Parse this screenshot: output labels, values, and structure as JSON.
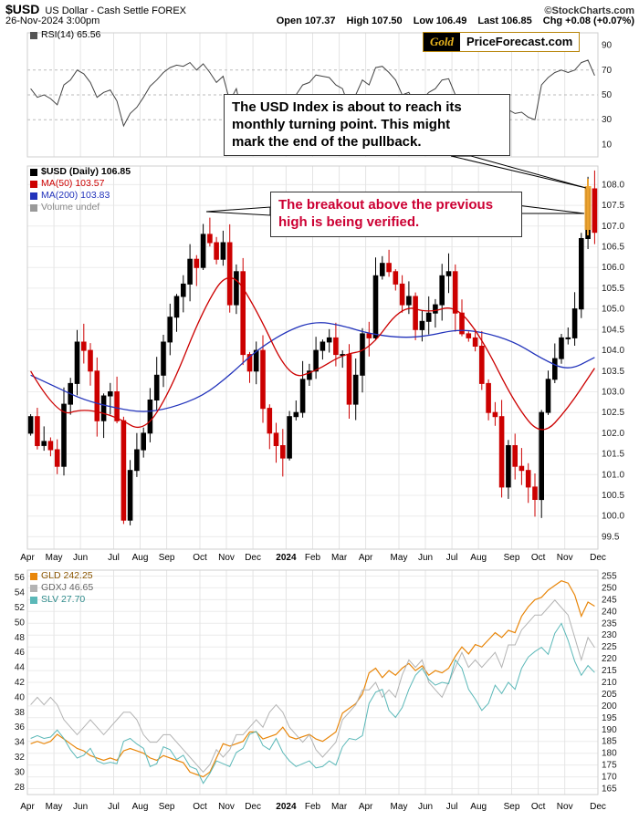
{
  "header": {
    "symbol": "$USD",
    "description": "US Dollar - Cash Settle FOREX",
    "copyright": "©StockCharts.com",
    "datetime": "26-Nov-2024 3:00pm",
    "quote": {
      "open_label": "Open",
      "open": "107.37",
      "high_label": "High",
      "high": "107.50",
      "low_label": "Low",
      "low": "106.49",
      "last_label": "Last",
      "last": "106.85",
      "chg_label": "Chg",
      "chg": "+0.08 (+0.07%)"
    }
  },
  "branding": {
    "left": "Gold",
    "right": "PriceForecast.com",
    "gold_color": "#b8860b"
  },
  "annotations": {
    "note1": "The USD Index is about to reach its\nmonthly turning point. This might\nmark the end of the pullback.",
    "note2": "The breakout above the previous\nhigh is being verified.",
    "note2_color": "#cc0033"
  },
  "rsi_panel": {
    "label": "RSI(14) 65.56"
  },
  "main_panel": {
    "legend": [
      {
        "label": "$USD (Daily) 106.85",
        "color": "#000000"
      },
      {
        "label": "MA(50) 103.57",
        "color": "#cc0000"
      },
      {
        "label": "MA(200) 103.83",
        "color": "#2233bb"
      },
      {
        "label": "Volume undef",
        "color": "#888888"
      }
    ]
  },
  "bottom_panel": {
    "legend": [
      {
        "label": "GLD 242.25",
        "color": "#e8860a"
      },
      {
        "label": "GDXJ 46.65",
        "color": "#b3b3b3"
      },
      {
        "label": "SLV 27.70",
        "color": "#5bb8b8"
      }
    ]
  },
  "x_axis": {
    "labels": [
      "Apr",
      "May",
      "Jun",
      "Jul",
      "Aug",
      "Sep",
      "Oct",
      "Nov",
      "Dec",
      "2024",
      "Feb",
      "Mar",
      "Apr",
      "May",
      "Jun",
      "Jul",
      "Aug",
      "Sep",
      "Oct",
      "Nov",
      "Dec"
    ],
    "tick_idx": [
      0,
      4,
      8,
      13,
      17,
      21,
      26,
      30,
      34,
      39,
      43,
      47,
      51,
      56,
      60,
      64,
      68,
      73,
      77,
      81,
      86
    ]
  },
  "chart_data": [
    {
      "type": "line",
      "title": "RSI(14)",
      "current": 65.56,
      "ylim": [
        0,
        100
      ],
      "y_ticks": [
        90,
        70,
        50,
        30,
        10
      ],
      "gridlines": [
        30,
        50,
        70
      ],
      "values": [
        55,
        48,
        50,
        47,
        42,
        58,
        62,
        70,
        67,
        60,
        48,
        52,
        54,
        45,
        25,
        35,
        40,
        48,
        57,
        62,
        68,
        72,
        74,
        73,
        76,
        70,
        75,
        68,
        60,
        65,
        45,
        55,
        32,
        30,
        42,
        30,
        28,
        27,
        26,
        48,
        50,
        58,
        60,
        66,
        65,
        64,
        58,
        55,
        40,
        50,
        62,
        58,
        72,
        73,
        68,
        62,
        50,
        52,
        42,
        46,
        52,
        55,
        62,
        63,
        50,
        44,
        42,
        40,
        32,
        30,
        31,
        22,
        38,
        35,
        36,
        32,
        30,
        58,
        64,
        68,
        70,
        68,
        70,
        76,
        78,
        65.56
      ]
    },
    {
      "type": "candlestick",
      "title": "$USD (Daily)",
      "current": 106.85,
      "ma50_current": 103.57,
      "ma200_current": 103.83,
      "ylim": [
        99.2,
        108.45
      ],
      "y_ticks": [
        108.0,
        107.5,
        107.0,
        106.5,
        106.0,
        105.5,
        105.0,
        104.5,
        104.0,
        103.5,
        103.0,
        102.5,
        102.0,
        101.5,
        101.0,
        100.5,
        100.0,
        99.5
      ],
      "granularity": "weekly approximation of daily chart, Apr 2023 - Nov 2024",
      "closes": [
        102.4,
        101.7,
        101.8,
        101.6,
        101.2,
        102.7,
        103.2,
        104.2,
        104.0,
        103.5,
        102.3,
        102.9,
        103.0,
        102.3,
        99.9,
        101.1,
        101.6,
        102.0,
        102.8,
        103.4,
        104.2,
        104.8,
        105.3,
        105.6,
        106.2,
        106.0,
        106.8,
        106.6,
        106.2,
        106.6,
        105.1,
        105.9,
        103.9,
        103.5,
        104.0,
        102.6,
        102.0,
        101.7,
        101.4,
        102.4,
        102.5,
        103.3,
        103.5,
        104.0,
        104.2,
        104.3,
        103.9,
        103.9,
        102.7,
        103.4,
        104.4,
        104.3,
        105.8,
        106.1,
        105.9,
        105.6,
        105.1,
        105.3,
        104.5,
        104.7,
        104.9,
        105.1,
        105.8,
        105.9,
        104.9,
        104.4,
        104.3,
        104.1,
        103.2,
        102.5,
        102.4,
        100.7,
        101.7,
        101.2,
        101.1,
        100.7,
        100.4,
        102.5,
        103.3,
        103.8,
        104.3,
        104.3,
        105.0,
        106.7,
        107.9,
        106.85
      ],
      "ma_idx": [
        0,
        4,
        8,
        13,
        17,
        21,
        26,
        30,
        34,
        39,
        43,
        47,
        51,
        56,
        60,
        64,
        68,
        73,
        77,
        81,
        85
      ],
      "ma50": [
        103.5,
        102.4,
        102.6,
        102.4,
        102.0,
        103.0,
        105.0,
        106.0,
        105.0,
        103.3,
        103.5,
        103.9,
        104.0,
        105.1,
        104.9,
        105.1,
        104.3,
        102.7,
        101.9,
        102.6,
        103.57
      ],
      "ma200": [
        103.4,
        103.1,
        102.8,
        102.6,
        102.5,
        102.6,
        102.9,
        103.4,
        104.0,
        104.5,
        104.7,
        104.6,
        104.4,
        104.3,
        104.35,
        104.5,
        104.45,
        104.2,
        103.8,
        103.5,
        103.83
      ]
    },
    {
      "type": "line",
      "title": "GLD / GDXJ / SLV comparison",
      "left_ylim": [
        27,
        57
      ],
      "right_ylim": [
        162.5,
        257.5
      ],
      "left_ticks": [
        56,
        54,
        52,
        50,
        48,
        46,
        44,
        42,
        40,
        38,
        36,
        34,
        32,
        30,
        28
      ],
      "right_ticks": [
        255,
        250,
        245,
        240,
        235,
        230,
        225,
        220,
        215,
        210,
        205,
        200,
        195,
        190,
        185,
        180,
        175,
        170,
        165
      ],
      "series": [
        {
          "name": "GLD",
          "axis": "right",
          "color": "#e8860a",
          "current": 242.25,
          "values": [
            184,
            185,
            184,
            185,
            188,
            186,
            184,
            182,
            181,
            179,
            178,
            177,
            178,
            177,
            181,
            182,
            181,
            180,
            178,
            177,
            179,
            178,
            177,
            176,
            172,
            171,
            170,
            172,
            178,
            184,
            183,
            184,
            185,
            189,
            189,
            186,
            187,
            188,
            191,
            187,
            186,
            187,
            188,
            186,
            185,
            187,
            189,
            197,
            199,
            201,
            205,
            214,
            216,
            212,
            215,
            213,
            216,
            218,
            215,
            217,
            213,
            215,
            214,
            216,
            221,
            225,
            222,
            226,
            225,
            228,
            231,
            229,
            232,
            231,
            238,
            242,
            245,
            246,
            249,
            251,
            253,
            252,
            247,
            238,
            244,
            242.25
          ]
        },
        {
          "name": "GDXJ",
          "axis": "left",
          "color": "#b3b3b3",
          "current": 46.65,
          "values": [
            39,
            40,
            39,
            40,
            39,
            37,
            36,
            35,
            36,
            37,
            36,
            35,
            36,
            37,
            38,
            38,
            37,
            35,
            34,
            34,
            35,
            35,
            34,
            33,
            32,
            31,
            30,
            31,
            33,
            32,
            33,
            35,
            35,
            36,
            37,
            36,
            38,
            39,
            38,
            36,
            35,
            34,
            35,
            33,
            32,
            33,
            34,
            37,
            38,
            39,
            41,
            41,
            42,
            40,
            41,
            40,
            43,
            45,
            44,
            45,
            42,
            41,
            40,
            42,
            44,
            46,
            44,
            45,
            44,
            45,
            46,
            44,
            47,
            47,
            49,
            50,
            51,
            51,
            52,
            53,
            52,
            51,
            48,
            45,
            48,
            46.65
          ]
        },
        {
          "name": "SLV",
          "axis": "auto",
          "auto_range": [
            19,
            35
          ],
          "color": "#5bb8b8",
          "current": 27.7,
          "values": [
            23.0,
            23.2,
            23.0,
            23.1,
            23.6,
            23.0,
            22.2,
            21.6,
            21.8,
            22.3,
            21.4,
            21.2,
            21.3,
            21.2,
            22.8,
            23.0,
            22.6,
            22.3,
            21.0,
            21.2,
            22.4,
            22.2,
            21.5,
            21.8,
            21.0,
            20.8,
            19.8,
            20.5,
            21.4,
            21.2,
            21.0,
            22.0,
            22.3,
            23.3,
            23.5,
            22.5,
            22.2,
            23.0,
            22.0,
            21.4,
            21.0,
            21.2,
            21.4,
            20.9,
            21.0,
            21.4,
            21.1,
            22.4,
            23.0,
            22.9,
            23.2,
            25.5,
            26.3,
            26.5,
            25.0,
            24.5,
            25.2,
            26.5,
            27.5,
            28.0,
            27.2,
            26.8,
            27.0,
            26.9,
            28.6,
            28.0,
            26.5,
            25.8,
            25.0,
            25.5,
            26.8,
            26.2,
            27.0,
            26.5,
            28.0,
            28.8,
            29.2,
            29.5,
            29.0,
            30.5,
            31.2,
            30.0,
            28.5,
            27.5,
            28.2,
            27.7
          ]
        }
      ]
    }
  ]
}
